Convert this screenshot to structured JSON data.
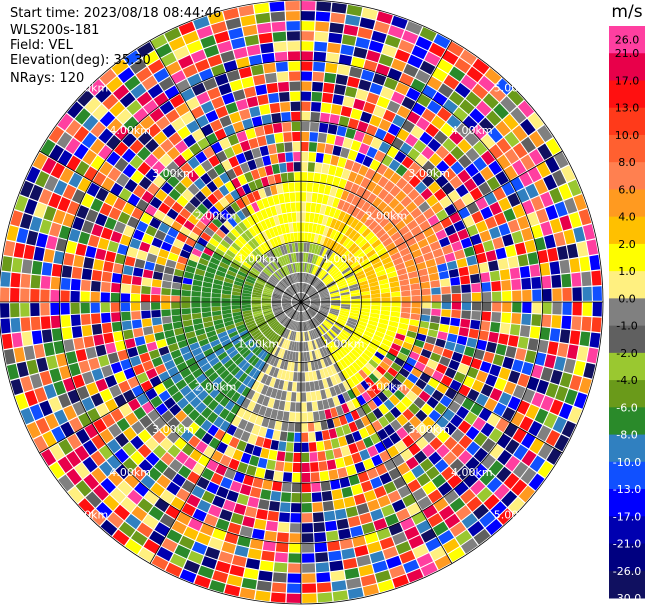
{
  "chart_data": {
    "type": "heatmap",
    "subtype": "radar PPI (polar) velocity field",
    "info": {
      "start_time": "Start time: 2023/08/18 08:44:46",
      "instrument": "WLS200s-181",
      "field": "Field: VEL",
      "elevation": "Elevation(deg): 35.30",
      "nrays": "NRays: 120"
    },
    "range_ring_labels": [
      "1.00km",
      "2.00km",
      "3.00km",
      "4.00km",
      "5.00km"
    ],
    "range_rings_km": [
      1,
      2,
      3,
      4,
      5
    ],
    "max_range_km": 5.0,
    "n_rays": 120,
    "n_gates": 30,
    "colorbar": {
      "unit": "m/s",
      "tick_labels": [
        "26.0",
        "21.0",
        "17.0",
        "13.0",
        "10.0",
        "8.0",
        "6.0",
        "4.0",
        "2.0",
        "1.0",
        "0.0",
        "-1.0",
        "-2.0",
        "-4.0",
        "-6.0",
        "-8.0",
        "-10.0",
        "-13.0",
        "-17.0",
        "-21.0",
        "-26.0",
        "-30.0"
      ],
      "colors": [
        "#ff3fa0",
        "#e8004a",
        "#ff1010",
        "#ff3a1a",
        "#ff6030",
        "#ff8050",
        "#ff9a20",
        "#ffc000",
        "#ffff00",
        "#fff080",
        "#808080",
        "#606060",
        "#9ac830",
        "#6a9a1a",
        "#2a8a2a",
        "#3080c0",
        "#1050ff",
        "#0000ff",
        "#0000b0",
        "#000080",
        "#101060"
      ]
    }
  }
}
